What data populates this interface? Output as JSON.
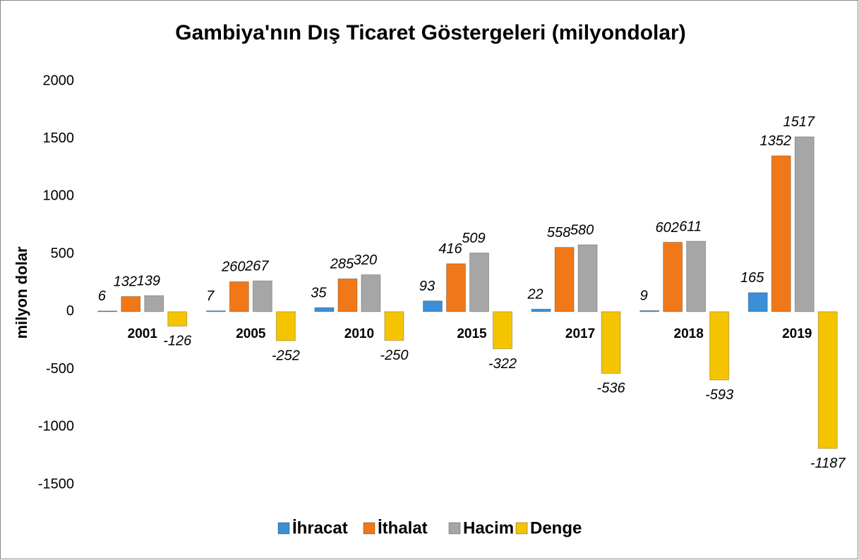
{
  "chart_data": {
    "type": "bar",
    "title": "Gambiya'nın Dış Ticaret Göstergeleri (milyondolar)",
    "y_label": "milyon dolar",
    "categories": [
      "2001",
      "2005",
      "2010",
      "2015",
      "2017",
      "2018",
      "2019"
    ],
    "series": [
      {
        "name": "İhracat",
        "color": "#3a8fd6",
        "values": [
          6,
          7,
          35,
          93,
          22,
          9,
          165
        ]
      },
      {
        "name": "İthalat",
        "color": "#f07818",
        "values": [
          132,
          260,
          285,
          416,
          558,
          602,
          1352
        ]
      },
      {
        "name": "Hacim",
        "color": "#a6a6a6",
        "values": [
          139,
          267,
          320,
          509,
          580,
          611,
          1517
        ]
      },
      {
        "name": "Denge",
        "color": "#f5c400",
        "values": [
          -126,
          -252,
          -250,
          -322,
          -536,
          -593,
          -1187
        ]
      }
    ],
    "ylim": [
      -1500,
      2000
    ],
    "yticks": [
      -1500,
      -1000,
      -500,
      0,
      500,
      1000,
      1500,
      2000
    ],
    "grid": false,
    "legend": "bottom"
  }
}
